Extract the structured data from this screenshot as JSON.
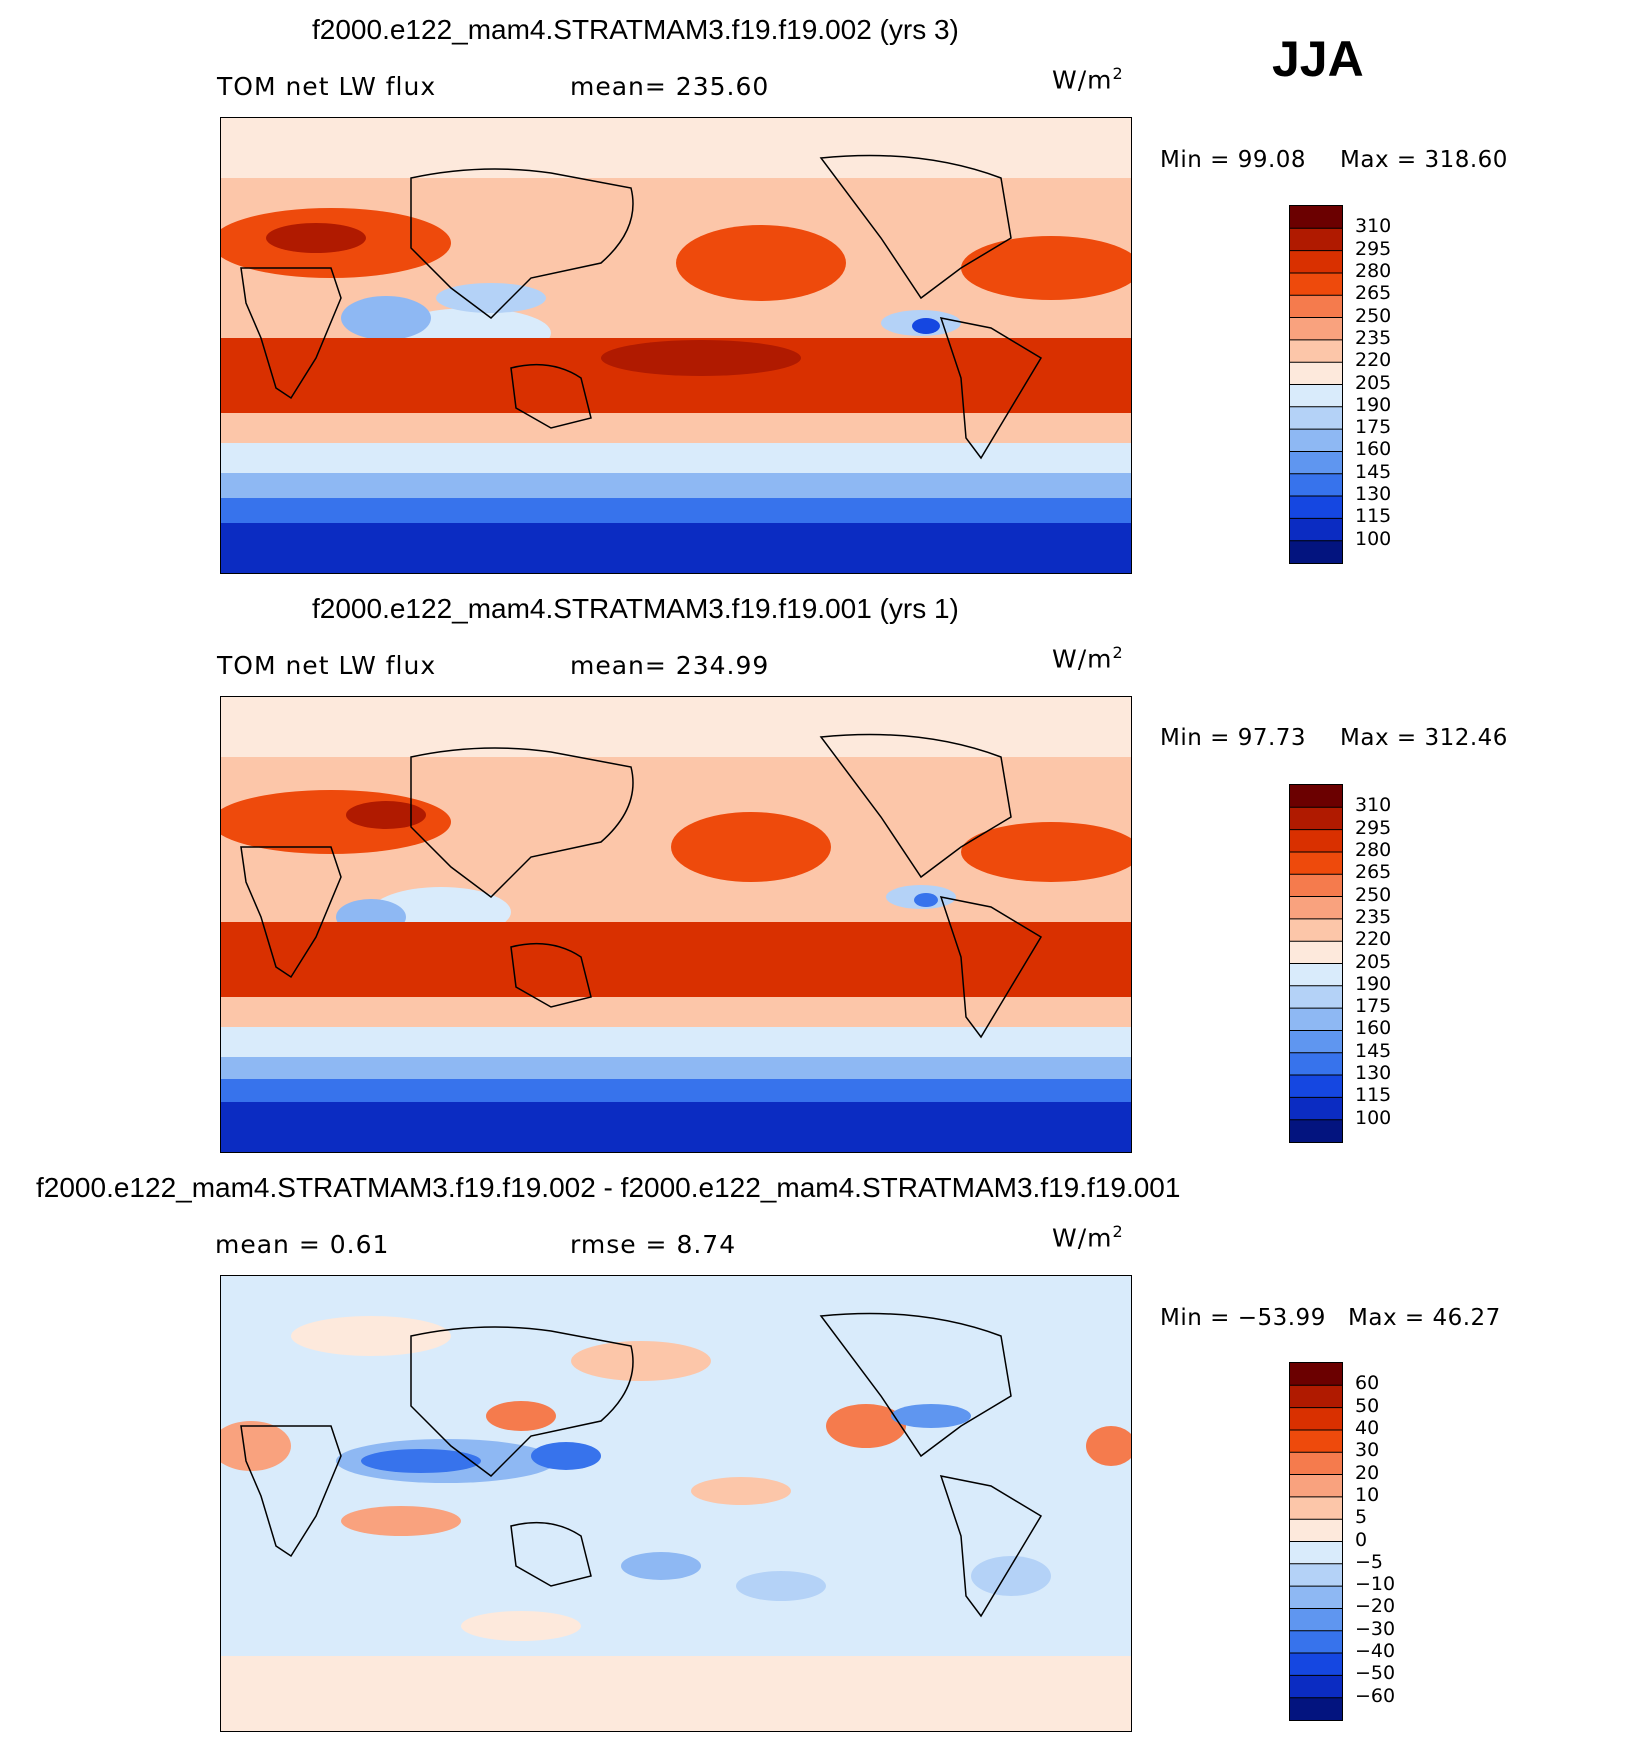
{
  "season_label": "JJA",
  "units_main": "W/m",
  "units_sup": "2",
  "colorbar_abs": {
    "levels": [
      "310",
      "295",
      "280",
      "265",
      "250",
      "235",
      "220",
      "205",
      "190",
      "175",
      "160",
      "145",
      "130",
      "115",
      "100"
    ],
    "colors": [
      "#6b0000",
      "#b01a00",
      "#d93000",
      "#ee4a0c",
      "#f57b4d",
      "#f9a27e",
      "#fcc6a9",
      "#fde9dc",
      "#d9ebfb",
      "#b4d2f7",
      "#8eb8f3",
      "#5f96f0",
      "#3773ec",
      "#1547e1",
      "#0b2cc2",
      "#03147f"
    ]
  },
  "colorbar_diff": {
    "levels": [
      "60",
      "50",
      "40",
      "30",
      "20",
      "10",
      "5",
      "0",
      "−5",
      "−10",
      "−20",
      "−30",
      "−40",
      "−50",
      "−60"
    ],
    "colors": [
      "#6b0000",
      "#b01a00",
      "#d93000",
      "#ee4a0c",
      "#f57b4d",
      "#f9a27e",
      "#fcc6a9",
      "#fde9dc",
      "#d9ebfb",
      "#b4d2f7",
      "#8eb8f3",
      "#5f96f0",
      "#3773ec",
      "#1547e1",
      "#0b2cc2",
      "#03147f"
    ]
  },
  "chart_data": [
    {
      "type": "heatmap",
      "title": "f2000.e122_mam4.STRATMAM3.f19.f19.002 (yrs 3)",
      "variable_label": "TOM net LW flux",
      "stat_text": "mean= 235.60",
      "mean": 235.6,
      "min_text": "Min =    99.08",
      "max_text": "Max  =  318.60",
      "min": 99.08,
      "max": 318.6,
      "season": "JJA",
      "units": "W/m2",
      "levels": [
        100,
        115,
        130,
        145,
        160,
        175,
        190,
        205,
        220,
        235,
        250,
        265,
        280,
        295,
        310
      ]
    },
    {
      "type": "heatmap",
      "title": "f2000.e122_mam4.STRATMAM3.f19.f19.001 (yrs 1)",
      "variable_label": "TOM net LW flux",
      "stat_text": "mean= 234.99",
      "mean": 234.99,
      "min_text": "Min =    97.73",
      "max_text": "Max  =  312.46",
      "min": 97.73,
      "max": 312.46,
      "season": "JJA",
      "units": "W/m2",
      "levels": [
        100,
        115,
        130,
        145,
        160,
        175,
        190,
        205,
        220,
        235,
        250,
        265,
        280,
        295,
        310
      ]
    },
    {
      "type": "heatmap",
      "title": "f2000.e122_mam4.STRATMAM3.f19.f19.002 - f2000.e122_mam4.STRATMAM3.f19.f19.001",
      "mean_text": "mean  =     0.61",
      "rmse_text": "rmse  =     8.74",
      "mean": 0.61,
      "rmse": 8.74,
      "min_text": "Min  =  −53.99",
      "max_text": "Max  =    46.27",
      "min": -53.99,
      "max": 46.27,
      "season": "JJA",
      "units": "W/m2",
      "levels": [
        -60,
        -50,
        -40,
        -30,
        -20,
        -10,
        -5,
        0,
        5,
        10,
        20,
        30,
        40,
        50,
        60
      ]
    }
  ]
}
